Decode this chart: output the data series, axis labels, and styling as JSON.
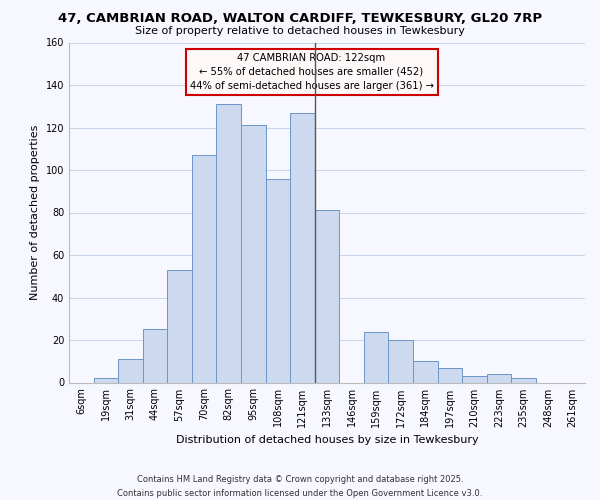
{
  "title": "47, CAMBRIAN ROAD, WALTON CARDIFF, TEWKESBURY, GL20 7RP",
  "subtitle": "Size of property relative to detached houses in Tewkesbury",
  "xlabel": "Distribution of detached houses by size in Tewkesbury",
  "ylabel": "Number of detached properties",
  "bar_labels": [
    "6sqm",
    "19sqm",
    "31sqm",
    "44sqm",
    "57sqm",
    "70sqm",
    "82sqm",
    "95sqm",
    "108sqm",
    "121sqm",
    "133sqm",
    "146sqm",
    "159sqm",
    "172sqm",
    "184sqm",
    "197sqm",
    "210sqm",
    "223sqm",
    "235sqm",
    "248sqm",
    "261sqm"
  ],
  "bar_heights": [
    0,
    2,
    11,
    25,
    53,
    107,
    131,
    121,
    96,
    127,
    81,
    0,
    24,
    20,
    10,
    7,
    3,
    4,
    2,
    0,
    0
  ],
  "bar_color": "#ccd9ee",
  "bar_edge_color": "#6b96c8",
  "annotation_title": "47 CAMBRIAN ROAD: 122sqm",
  "annotation_line1": "← 55% of detached houses are smaller (452)",
  "annotation_line2": "44% of semi-detached houses are larger (361) →",
  "vline_x": 9.5,
  "vline_color": "#555555",
  "ylim": [
    0,
    160
  ],
  "yticks": [
    0,
    20,
    40,
    60,
    80,
    100,
    120,
    140,
    160
  ],
  "footer_line1": "Contains HM Land Registry data © Crown copyright and database right 2025.",
  "footer_line2": "Contains public sector information licensed under the Open Government Licence v3.0.",
  "bg_color": "#f7f7ff",
  "grid_color": "#c8d4e8",
  "annotation_box_facecolor": "#fff8f8",
  "annotation_box_edgecolor": "#cc0000",
  "title_fontsize": 9.5,
  "subtitle_fontsize": 8,
  "ylabel_fontsize": 8,
  "xlabel_fontsize": 8,
  "tick_fontsize": 7,
  "footer_fontsize": 6
}
